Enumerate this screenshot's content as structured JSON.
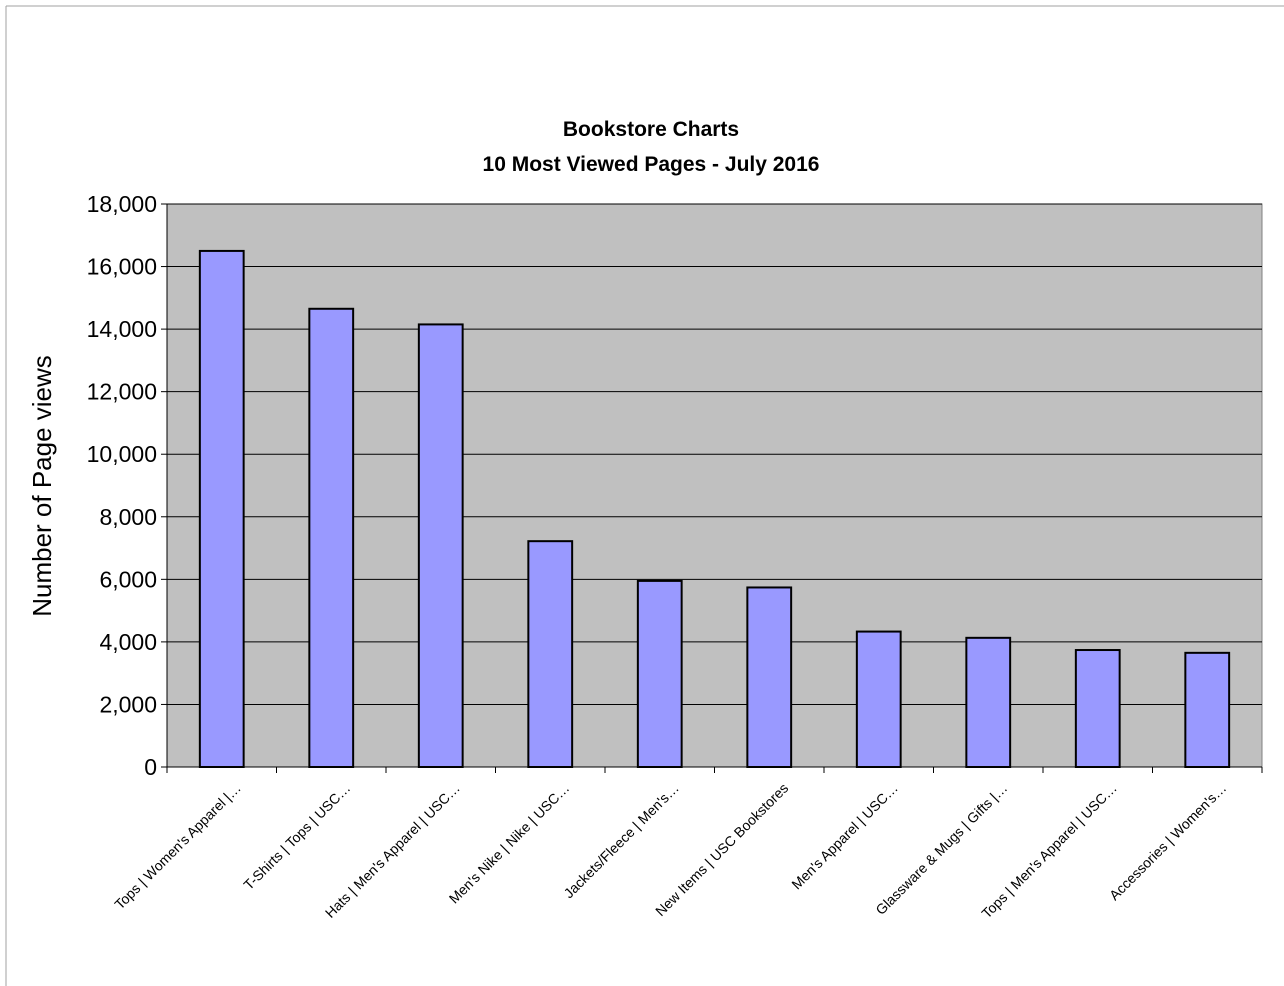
{
  "chart_data": {
    "type": "bar",
    "title": "Bookstore Charts",
    "subtitle": "10 Most Viewed Pages - July 2016",
    "ylabel": "Number of Page views",
    "xlabel": "",
    "ylim": [
      0,
      18000
    ],
    "yticks": [
      0,
      2000,
      4000,
      6000,
      8000,
      10000,
      12000,
      14000,
      16000,
      18000
    ],
    "ytick_labels": [
      "0",
      "2,000",
      "4,000",
      "6,000",
      "8,000",
      "10,000",
      "12,000",
      "14,000",
      "16,000",
      "18,000"
    ],
    "grid": true,
    "legend": "none",
    "categories": [
      "Tops | Women's Apparel |…",
      "T-Shirts | Tops | USC…",
      "Hats | Men's Apparel | USC…",
      "Men's Nike | Nike | USC…",
      "Jackets/Fleece | Men's…",
      "New Items | USC Bookstores",
      "Men's Apparel | USC…",
      "Glassware & Mugs | Gifts |…",
      "Tops | Men's Apparel | USC…",
      "Accessories | Women's…"
    ],
    "values": [
      16500,
      14650,
      14150,
      7220,
      5950,
      5740,
      4330,
      4130,
      3740,
      3650
    ],
    "colors": {
      "bar_fill": "#9999ff",
      "bar_stroke": "#000000",
      "plot_background": "#c0c0c0",
      "gridline": "#000000"
    }
  }
}
